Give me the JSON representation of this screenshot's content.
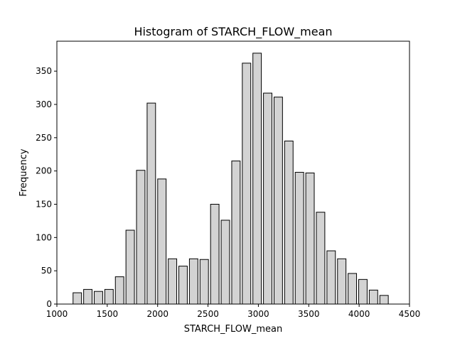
{
  "chart_data": {
    "type": "bar",
    "title": "Histogram of STARCH_FLOW_mean",
    "xlabel": "STARCH_FLOW_mean",
    "ylabel": "Frequency",
    "xlim": [
      1000,
      4500
    ],
    "ylim": [
      0,
      395
    ],
    "xticks": [
      1000,
      1500,
      2000,
      2500,
      3000,
      3500,
      4000,
      4500
    ],
    "yticks": [
      0,
      50,
      100,
      150,
      200,
      250,
      300,
      350
    ],
    "grid": false,
    "bar_fill": "#d3d3d3",
    "bar_edge": "#000000",
    "bins": [
      {
        "x0": 1150,
        "x1": 1255,
        "value": 17
      },
      {
        "x0": 1255,
        "x1": 1360,
        "value": 22
      },
      {
        "x0": 1360,
        "x1": 1465,
        "value": 19
      },
      {
        "x0": 1465,
        "x1": 1570,
        "value": 22
      },
      {
        "x0": 1570,
        "x1": 1675,
        "value": 41
      },
      {
        "x0": 1675,
        "x1": 1780,
        "value": 111
      },
      {
        "x0": 1780,
        "x1": 1885,
        "value": 201
      },
      {
        "x0": 1885,
        "x1": 1990,
        "value": 302
      },
      {
        "x0": 1990,
        "x1": 2095,
        "value": 188
      },
      {
        "x0": 2095,
        "x1": 2200,
        "value": 68
      },
      {
        "x0": 2200,
        "x1": 2305,
        "value": 57
      },
      {
        "x0": 2305,
        "x1": 2410,
        "value": 68
      },
      {
        "x0": 2410,
        "x1": 2515,
        "value": 67
      },
      {
        "x0": 2515,
        "x1": 2620,
        "value": 150
      },
      {
        "x0": 2620,
        "x1": 2725,
        "value": 126
      },
      {
        "x0": 2725,
        "x1": 2830,
        "value": 215
      },
      {
        "x0": 2830,
        "x1": 2935,
        "value": 362
      },
      {
        "x0": 2935,
        "x1": 3040,
        "value": 377
      },
      {
        "x0": 3040,
        "x1": 3145,
        "value": 317
      },
      {
        "x0": 3145,
        "x1": 3250,
        "value": 311
      },
      {
        "x0": 3250,
        "x1": 3355,
        "value": 245
      },
      {
        "x0": 3355,
        "x1": 3460,
        "value": 198
      },
      {
        "x0": 3460,
        "x1": 3565,
        "value": 197
      },
      {
        "x0": 3565,
        "x1": 3670,
        "value": 138
      },
      {
        "x0": 3670,
        "x1": 3775,
        "value": 80
      },
      {
        "x0": 3775,
        "x1": 3880,
        "value": 68
      },
      {
        "x0": 3880,
        "x1": 3985,
        "value": 46
      },
      {
        "x0": 3985,
        "x1": 4090,
        "value": 37
      },
      {
        "x0": 4090,
        "x1": 4195,
        "value": 21
      },
      {
        "x0": 4195,
        "x1": 4300,
        "value": 13
      }
    ]
  }
}
